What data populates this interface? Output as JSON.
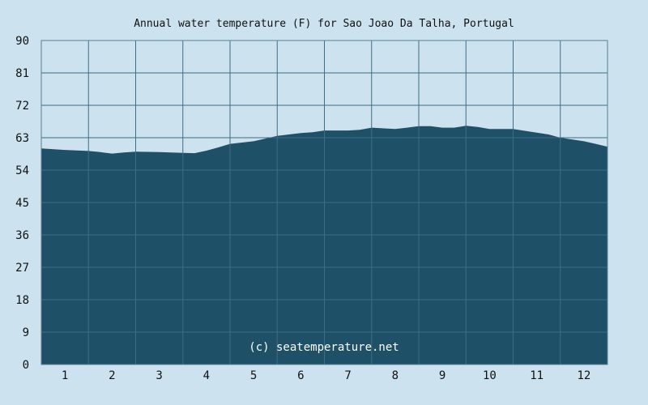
{
  "chart_data": {
    "type": "area",
    "title": "Annual water temperature (F) for Sao Joao Da Talha, Portugal",
    "xlabel": "",
    "ylabel": "",
    "x_ticks": [
      "1",
      "2",
      "3",
      "4",
      "5",
      "6",
      "7",
      "8",
      "9",
      "10",
      "11",
      "12"
    ],
    "y_ticks": [
      "0",
      "9",
      "18",
      "27",
      "36",
      "45",
      "54",
      "63",
      "72",
      "81",
      "90"
    ],
    "ylim": [
      0,
      90
    ],
    "xlim": [
      0.5,
      12.5
    ],
    "grid": true,
    "watermark": "(c) seatemperature.net",
    "x": [
      0.5,
      1.0,
      1.5,
      1.75,
      2.0,
      2.25,
      2.5,
      3.0,
      3.5,
      3.75,
      4.0,
      4.25,
      4.5,
      5.0,
      5.5,
      6.0,
      6.25,
      6.5,
      7.0,
      7.25,
      7.5,
      8.0,
      8.25,
      8.5,
      8.75,
      9.0,
      9.25,
      9.5,
      9.75,
      10.0,
      10.25,
      10.5,
      11.0,
      11.25,
      11.5,
      12.0,
      12.25,
      12.5
    ],
    "values": [
      60.0,
      59.6,
      59.3,
      59.0,
      58.6,
      58.9,
      59.1,
      59.0,
      58.8,
      58.7,
      59.4,
      60.3,
      61.3,
      62.0,
      63.5,
      64.3,
      64.5,
      65.0,
      65.0,
      65.2,
      65.8,
      65.4,
      65.8,
      66.2,
      66.2,
      65.8,
      65.8,
      66.3,
      66.0,
      65.4,
      65.4,
      65.4,
      64.4,
      63.9,
      63.0,
      62.0,
      61.3,
      60.5
    ],
    "colors": {
      "background": "#cce2ee",
      "fill": "#1e5068",
      "grid": "#3d6e87",
      "plot_border": "#5a7f93",
      "text": "#111111",
      "watermark": "#ffffff"
    }
  }
}
